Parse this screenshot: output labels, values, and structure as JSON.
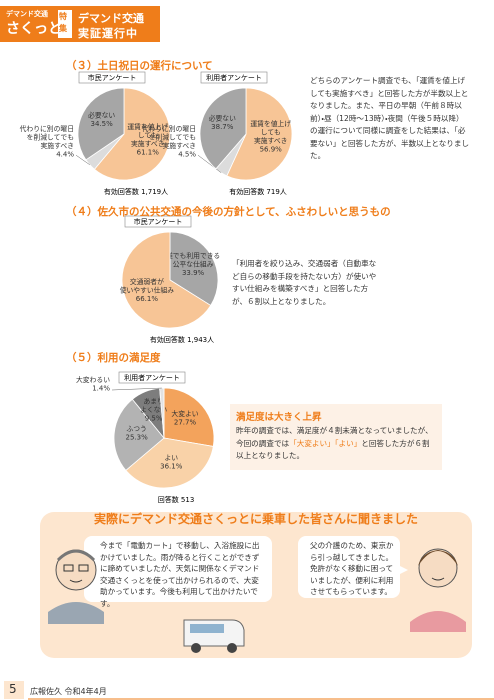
{
  "header": {
    "badge": [
      "デマンド交通",
      "さくっと"
    ],
    "tag": "特集",
    "title": [
      "デマンド交通",
      "実証運行中"
    ]
  },
  "section3": {
    "heading": "（３）土日祝日の運行について",
    "charts": [
      {
        "type": "pie",
        "title": "市民アンケート",
        "categories": [
          [
            "運賃を値上げ",
            "しても",
            "実施すべき"
          ],
          [
            "代わりに別の曜日",
            "を削減してでも",
            "実施すべき"
          ],
          [
            "必要ない"
          ]
        ],
        "values": [
          61.1,
          4.4,
          34.5
        ],
        "value_labels": [
          "61.1%",
          "4.4%",
          "34.5%"
        ],
        "colors": [
          "#f7c596",
          "#dcdcdc",
          "#a6a6a6"
        ],
        "note": "有効回答数 1,719人"
      },
      {
        "type": "pie",
        "title": "利用者アンケート",
        "categories": [
          [
            "運賃を値上げ",
            "しても",
            "実施すべき"
          ],
          [
            "代わりに別の曜日",
            "を削減してでも",
            "実施すべき"
          ],
          [
            "必要ない"
          ]
        ],
        "values": [
          56.9,
          4.5,
          38.7
        ],
        "value_labels": [
          "56.9%",
          "4.5%",
          "38.7%"
        ],
        "colors": [
          "#f7c596",
          "#dcdcdc",
          "#a6a6a6"
        ],
        "note": "有効回答数 719人"
      }
    ],
    "text": "どちらのアンケート調査でも、「運賃を値上げしても実施すべき」と回答した方が半数以上となりました。また、平日の早朝（午前８時以前）・昼（12時～13時）・夜間（午後５時以降）の運行について同様に調査をした結果は、「必要ない」と回答した方が、半数以上となりました。"
  },
  "section4": {
    "heading": "（４）佐久市の公共交通の今後の方針として、ふさわしいと思うもの",
    "charts": [
      {
        "type": "pie",
        "title": "市民アンケート",
        "categories": [
          [
            "誰でも利用できる",
            "公平な仕組み"
          ],
          [
            "交通弱者が",
            "使いやすい仕組み"
          ]
        ],
        "values": [
          33.9,
          66.1
        ],
        "value_labels": [
          "33.9%",
          "66.1%"
        ],
        "colors": [
          "#a6a6a6",
          "#f7c596"
        ],
        "note": "有効回答数 1,943人"
      }
    ],
    "text": "「利用者を絞り込み、交通弱者（自動車など自らの移動手段を持たない方）が使いやすい仕組みを構築すべき」と回答した方が、６割以上となりました。"
  },
  "section5": {
    "heading": "（５）利用の満足度",
    "charts": [
      {
        "type": "pie",
        "title": "利用者アンケート",
        "categories": [
          [
            "大変よい"
          ],
          [
            "よい"
          ],
          [
            "ふつう"
          ],
          [
            "あまり",
            "よくない"
          ],
          [
            "大変わるい"
          ]
        ],
        "values": [
          27.7,
          36.1,
          25.3,
          9.5,
          1.4
        ],
        "value_labels": [
          "27.7%",
          "36.1%",
          "25.3%",
          "9.5%",
          "1.4%"
        ],
        "colors": [
          "#f3a35c",
          "#f9d2a8",
          "#b3b3b3",
          "#7d7d7d",
          "#e2e2e2"
        ],
        "note": "回答数 513"
      }
    ],
    "box_title": "満足度は大きく上昇",
    "text": [
      "昨年の調査では、満足度が４割未満となっていましたが、今回の調査では",
      "「大変よい」「よい」",
      "と回答した方が６割以上となりました。"
    ]
  },
  "voices": {
    "banner": "実際にデマンド交通さくっとに乗車した皆さんに聞きました",
    "quotes": [
      "今まで「電動カート」で移動し、入浴施設に出かけていました。雨が降ると行くことができずに諦めていましたが、天気に関係なくデマンド交通さくっとを使って出かけられるので、大変助かっています。今後も利用して出かけたいです。",
      "父の介護のため、東京から引っ越してきました。免許がなく移動に困っていましたが、便利に利用させてもらっています。"
    ]
  },
  "footer": {
    "page": "5",
    "publication": "広報佐久 令和4年4月"
  }
}
